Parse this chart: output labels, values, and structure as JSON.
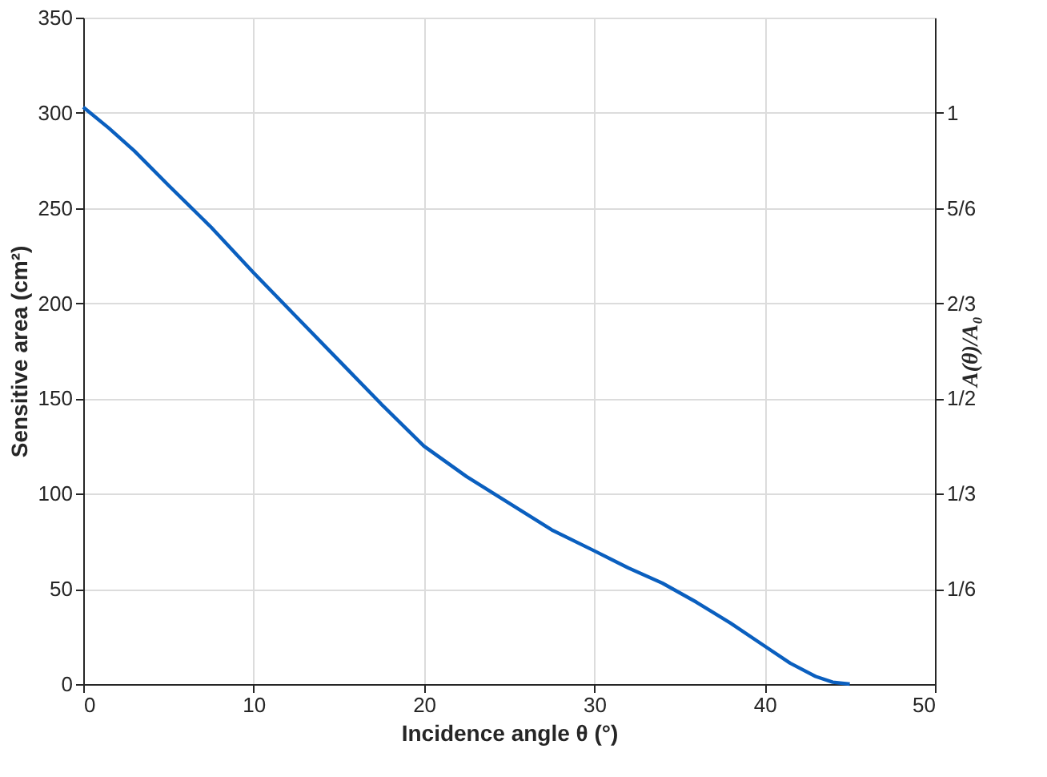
{
  "chart_data": {
    "type": "line",
    "xlabel": "Incidence angle θ (°)",
    "ylabel": "Sensitive area (cm²)",
    "y2label": "A(θ)/A₀",
    "x": [
      0,
      1.5,
      3,
      5,
      7.5,
      10,
      12.5,
      15,
      17.5,
      20,
      22.5,
      25,
      27.5,
      30,
      32,
      34,
      36,
      38,
      40,
      41.5,
      43,
      44,
      45
    ],
    "series": [
      {
        "color": "#0a5fbf",
        "values": [
          303,
          292,
          280,
          262,
          240,
          216,
          193,
          170,
          147,
          125,
          109,
          95,
          81,
          70,
          61,
          53,
          43,
          32,
          20,
          11,
          4,
          1,
          0
        ]
      }
    ],
    "xlim": [
      0,
      50
    ],
    "xticks": [
      0,
      10,
      20,
      30,
      40,
      50
    ],
    "ylim": [
      0,
      350
    ],
    "yticks": [
      0,
      50,
      100,
      150,
      200,
      250,
      300,
      350
    ],
    "y2lim": [
      0,
      1.1667
    ],
    "y2ticks": [
      {
        "value": 0.1667,
        "label": "1/6"
      },
      {
        "value": 0.3333,
        "label": "1/3"
      },
      {
        "value": 0.5,
        "label": "1/2"
      },
      {
        "value": 0.6667,
        "label": "2/3"
      },
      {
        "value": 0.8333,
        "label": "5/6"
      },
      1
    ],
    "grid": true,
    "line_style": "solid"
  }
}
